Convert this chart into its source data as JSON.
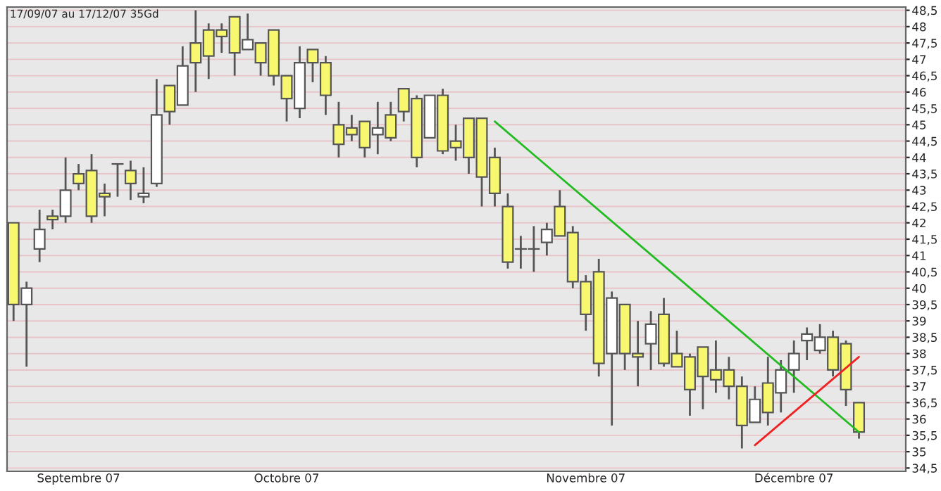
{
  "chart_data": {
    "type": "candlestick",
    "annotations": [
      "17/09/07 au 17/12/07 35Gd"
    ],
    "categories": [
      null,
      null,
      null,
      null,
      null,
      "Septembre 07",
      null,
      null,
      null,
      null,
      null,
      null,
      null,
      null,
      null,
      null,
      null,
      null,
      null,
      null,
      null,
      "Octobre 07",
      null,
      null,
      null,
      null,
      null,
      null,
      null,
      null,
      null,
      null,
      null,
      null,
      null,
      null,
      null,
      null,
      null,
      null,
      null,
      null,
      null,
      null,
      "Novembre 07",
      null,
      null,
      null,
      null,
      null,
      null,
      null,
      null,
      null,
      null,
      null,
      null,
      null,
      null,
      null,
      "Décembre 07",
      null,
      null,
      null,
      null,
      null
    ],
    "ohlc": [
      [
        42.0,
        42.0,
        39.0,
        39.5
      ],
      [
        39.5,
        40.2,
        37.6,
        40.0
      ],
      [
        41.2,
        42.4,
        40.8,
        41.8
      ],
      [
        42.2,
        42.4,
        41.8,
        42.1
      ],
      [
        42.2,
        44.0,
        42.0,
        43.0
      ],
      [
        43.5,
        43.8,
        43.0,
        43.2
      ],
      [
        43.6,
        44.1,
        42.0,
        42.2
      ],
      [
        42.9,
        43.2,
        42.2,
        42.8
      ],
      [
        43.8,
        43.8,
        42.8,
        43.8
      ],
      [
        43.6,
        43.9,
        42.7,
        43.2
      ],
      [
        42.8,
        43.7,
        42.6,
        42.9
      ],
      [
        43.2,
        46.4,
        43.1,
        45.3
      ],
      [
        46.2,
        46.2,
        45.0,
        45.4
      ],
      [
        45.6,
        47.4,
        45.6,
        46.8
      ],
      [
        47.5,
        48.5,
        46.0,
        46.9
      ],
      [
        47.9,
        48.1,
        46.4,
        47.1
      ],
      [
        47.9,
        48.1,
        47.2,
        47.7
      ],
      [
        48.3,
        48.3,
        46.5,
        47.2
      ],
      [
        47.3,
        48.4,
        47.3,
        47.6
      ],
      [
        47.5,
        47.5,
        46.5,
        46.9
      ],
      [
        47.9,
        47.9,
        46.2,
        46.5
      ],
      [
        46.5,
        46.5,
        45.1,
        45.8
      ],
      [
        45.5,
        47.4,
        45.2,
        46.9
      ],
      [
        47.3,
        47.3,
        46.3,
        46.9
      ],
      [
        46.9,
        47.1,
        45.3,
        45.9
      ],
      [
        45.0,
        45.7,
        44.0,
        44.4
      ],
      [
        44.9,
        45.3,
        44.5,
        44.7
      ],
      [
        45.1,
        45.1,
        44.0,
        44.3
      ],
      [
        44.7,
        45.7,
        44.1,
        44.9
      ],
      [
        45.3,
        45.7,
        44.5,
        44.6
      ],
      [
        46.1,
        46.1,
        45.1,
        45.4
      ],
      [
        45.8,
        45.9,
        43.7,
        44.0
      ],
      [
        44.6,
        45.9,
        44.6,
        45.9
      ],
      [
        45.9,
        46.1,
        44.1,
        44.2
      ],
      [
        44.5,
        45.0,
        43.9,
        44.3
      ],
      [
        45.2,
        45.2,
        43.5,
        44.0
      ],
      [
        45.2,
        45.2,
        42.5,
        43.4
      ],
      [
        44.0,
        44.3,
        42.5,
        42.9
      ],
      [
        42.5,
        42.9,
        40.6,
        40.8
      ],
      [
        41.2,
        41.6,
        40.6,
        41.2
      ],
      [
        41.2,
        41.9,
        40.5,
        41.2
      ],
      [
        41.4,
        42.0,
        41.0,
        41.8
      ],
      [
        42.5,
        43.0,
        41.6,
        41.6
      ],
      [
        41.7,
        41.9,
        40.0,
        40.2
      ],
      [
        40.2,
        40.4,
        38.7,
        39.2
      ],
      [
        40.5,
        40.9,
        37.3,
        37.7
      ],
      [
        38.0,
        39.9,
        35.8,
        39.7
      ],
      [
        39.5,
        39.5,
        37.5,
        38.0
      ],
      [
        38.0,
        39.0,
        37.0,
        37.9
      ],
      [
        38.3,
        39.3,
        37.5,
        38.9
      ],
      [
        39.2,
        39.7,
        37.6,
        37.7
      ],
      [
        38.0,
        38.7,
        37.6,
        37.6
      ],
      [
        37.9,
        38.0,
        36.1,
        36.9
      ],
      [
        38.2,
        38.2,
        36.3,
        37.3
      ],
      [
        37.5,
        38.4,
        36.8,
        37.2
      ],
      [
        37.5,
        37.9,
        36.6,
        37.0
      ],
      [
        37.0,
        37.3,
        35.1,
        35.8
      ],
      [
        35.9,
        37.0,
        35.9,
        36.6
      ],
      [
        37.1,
        37.9,
        35.8,
        36.2
      ],
      [
        36.8,
        37.8,
        36.2,
        37.5
      ],
      [
        37.5,
        38.4,
        36.8,
        38.0
      ],
      [
        38.4,
        38.8,
        37.8,
        38.6
      ],
      [
        38.1,
        38.9,
        38.0,
        38.5
      ],
      [
        38.5,
        38.7,
        37.3,
        37.5
      ],
      [
        38.3,
        38.4,
        36.4,
        36.9
      ],
      [
        36.5,
        36.5,
        35.4,
        35.6
      ]
    ],
    "colors": [
      "#f8f870",
      "#ffffff",
      "#ffffff",
      "#f8f870",
      "#ffffff",
      "#f8f870",
      "#f8f870",
      "#f8f870",
      "#f8f870",
      "#f8f870",
      "#ffffff",
      "#ffffff",
      "#f8f870",
      "#ffffff",
      "#f8f870",
      "#f8f870",
      "#f8f870",
      "#f8f870",
      "#ffffff",
      "#f8f870",
      "#f8f870",
      "#f8f870",
      "#ffffff",
      "#f8f870",
      "#f8f870",
      "#f8f870",
      "#f8f870",
      "#f8f870",
      "#ffffff",
      "#f8f870",
      "#f8f870",
      "#f8f870",
      "#ffffff",
      "#f8f870",
      "#f8f870",
      "#f8f870",
      "#f8f870",
      "#f8f870",
      "#f8f870",
      "#f8f870",
      "#f8f870",
      "#ffffff",
      "#f8f870",
      "#f8f870",
      "#f8f870",
      "#f8f870",
      "#ffffff",
      "#f8f870",
      "#f8f870",
      "#ffffff",
      "#f8f870",
      "#f8f870",
      "#f8f870",
      "#f8f870",
      "#f8f870",
      "#f8f870",
      "#f8f870",
      "#ffffff",
      "#f8f870",
      "#ffffff",
      "#ffffff",
      "#ffffff",
      "#ffffff",
      "#f8f870",
      "#f8f870",
      "#f8f870"
    ],
    "series": [
      {
        "type": "line",
        "values": [
          null,
          null,
          null,
          null,
          null,
          null,
          null,
          null,
          null,
          null,
          null,
          null,
          null,
          null,
          null,
          null,
          null,
          null,
          null,
          null,
          null,
          null,
          null,
          null,
          null,
          null,
          null,
          null,
          null,
          null,
          null,
          null,
          null,
          null,
          null,
          null,
          null,
          45.1,
          null,
          null,
          null,
          null,
          null,
          null,
          null,
          null,
          null,
          null,
          null,
          null,
          null,
          null,
          null,
          null,
          null,
          null,
          null,
          null,
          null,
          null,
          null,
          null,
          null,
          null,
          null,
          35.6
        ],
        "color": "#22bb22"
      },
      {
        "type": "line",
        "values": [
          null,
          null,
          null,
          null,
          null,
          null,
          null,
          null,
          null,
          null,
          null,
          null,
          null,
          null,
          null,
          null,
          null,
          null,
          null,
          null,
          null,
          null,
          null,
          null,
          null,
          null,
          null,
          null,
          null,
          null,
          null,
          null,
          null,
          null,
          null,
          null,
          null,
          null,
          null,
          null,
          null,
          null,
          null,
          null,
          null,
          null,
          null,
          null,
          null,
          null,
          null,
          null,
          null,
          null,
          null,
          null,
          null,
          35.2,
          null,
          null,
          null,
          null,
          null,
          null,
          null,
          37.9
        ],
        "color": "#ee2222"
      }
    ],
    "ylim": [
      34.4,
      48.6
    ],
    "yticks": [
      {
        "value": 34.5,
        "label": "34,5"
      },
      35,
      {
        "value": 35.5,
        "label": "35,5"
      },
      36,
      {
        "value": 36.5,
        "label": "36,5"
      },
      37,
      {
        "value": 37.5,
        "label": "37,5"
      },
      38,
      {
        "value": 38.5,
        "label": "38,5"
      },
      39,
      {
        "value": 39.5,
        "label": "39,5"
      },
      40,
      {
        "value": 40.5,
        "label": "40,5"
      },
      41,
      {
        "value": 41.5,
        "label": "41,5"
      },
      42,
      {
        "value": 42.5,
        "label": "42,5"
      },
      43,
      {
        "value": 43.5,
        "label": "43,5"
      },
      44,
      {
        "value": 44.5,
        "label": "44,5"
      },
      45,
      {
        "value": 45.5,
        "label": "45,5"
      },
      46,
      {
        "value": 46.5,
        "label": "46,5"
      },
      47,
      {
        "value": 47.5,
        "label": "47,5"
      },
      48,
      {
        "value": 48.5,
        "label": "48,5"
      }
    ],
    "grid": "y"
  }
}
